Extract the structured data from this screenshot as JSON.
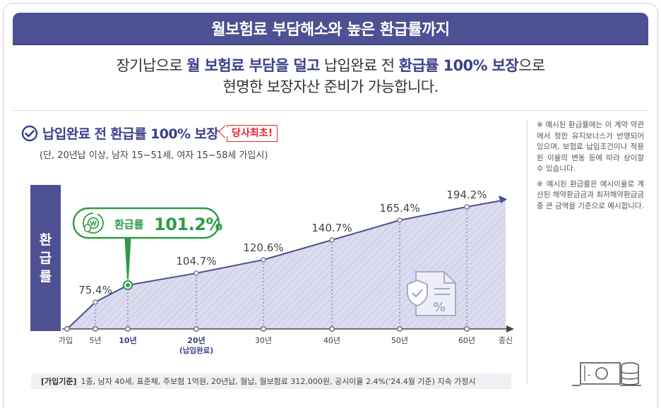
{
  "banner": {
    "title": "월보험료 부담해소와 높은 환급률까지"
  },
  "subhead": {
    "line1_a": "장기납으로 ",
    "line1_b": "월 보험료 부담을 덜고",
    "line1_c": " 납입완료 전 ",
    "line1_d": "환급률 100% 보장",
    "line1_e": "으로",
    "line2": "현명한 보장자산 준비가 가능합니다."
  },
  "section": {
    "title": "납입완료 전 환급률 100% 보장",
    "badge": "당사최초!",
    "condition": "(단, 20년납 이상, 남자 15~51세, 여자 15~58세 가입시)"
  },
  "side_label": [
    "환",
    "급",
    "률"
  ],
  "callout": {
    "label": "환급률",
    "value": "101.2%"
  },
  "chart_data": {
    "type": "area",
    "x_labels": [
      "가입",
      "5년",
      "10년",
      "20년",
      "30년",
      "40년",
      "50년",
      "60년",
      "종신"
    ],
    "x_sublabel_20": "(납입완료)",
    "points": [
      {
        "x": "가입",
        "value": 0,
        "label": ""
      },
      {
        "x": "5년",
        "value": 75.4,
        "label": "75.4%"
      },
      {
        "x": "10년",
        "value": 101.2,
        "label": ""
      },
      {
        "x": "20년",
        "value": 104.7,
        "label": "104.7%"
      },
      {
        "x": "30년",
        "value": 120.6,
        "label": "120.6%"
      },
      {
        "x": "40년",
        "value": 140.7,
        "label": "140.7%"
      },
      {
        "x": "50년",
        "value": 165.4,
        "label": "165.4%"
      },
      {
        "x": "60년",
        "value": 194.2,
        "label": "194.2%"
      }
    ],
    "highlight_x": [
      "10년",
      "20년"
    ],
    "colors": {
      "fill": "#dcdcef",
      "line": "#4d5092",
      "accent": "#2e9b46",
      "highlight_text": "#3b3f8a"
    }
  },
  "notes": [
    "※ 예시된 환급률에는 이 계약 약관에서 정한 유지보너스가 반영되어 있으며, 보험료 납입조건이나 적용된 이율의 변동 등에 따라 상이할 수 있습니다.",
    "※ 예시된 환급률은 예시이율로 계산된 해약환급금과 최저해약환급금 중 큰 금액을 기준으로 예시합니다."
  ],
  "basis": {
    "label": "[가입기준]",
    "text": "1종, 남자 40세, 표준체, 주보험 1억원, 20년납, 월납, 월보험료 312,000원, 공시이율 2.4%('24.4월 기준) 지속 가정시"
  },
  "icons": {
    "check": "check-circle-icon",
    "doc": "document-shield-icon",
    "money": "money-coins-icon",
    "refund": "refund-coin-icon"
  }
}
